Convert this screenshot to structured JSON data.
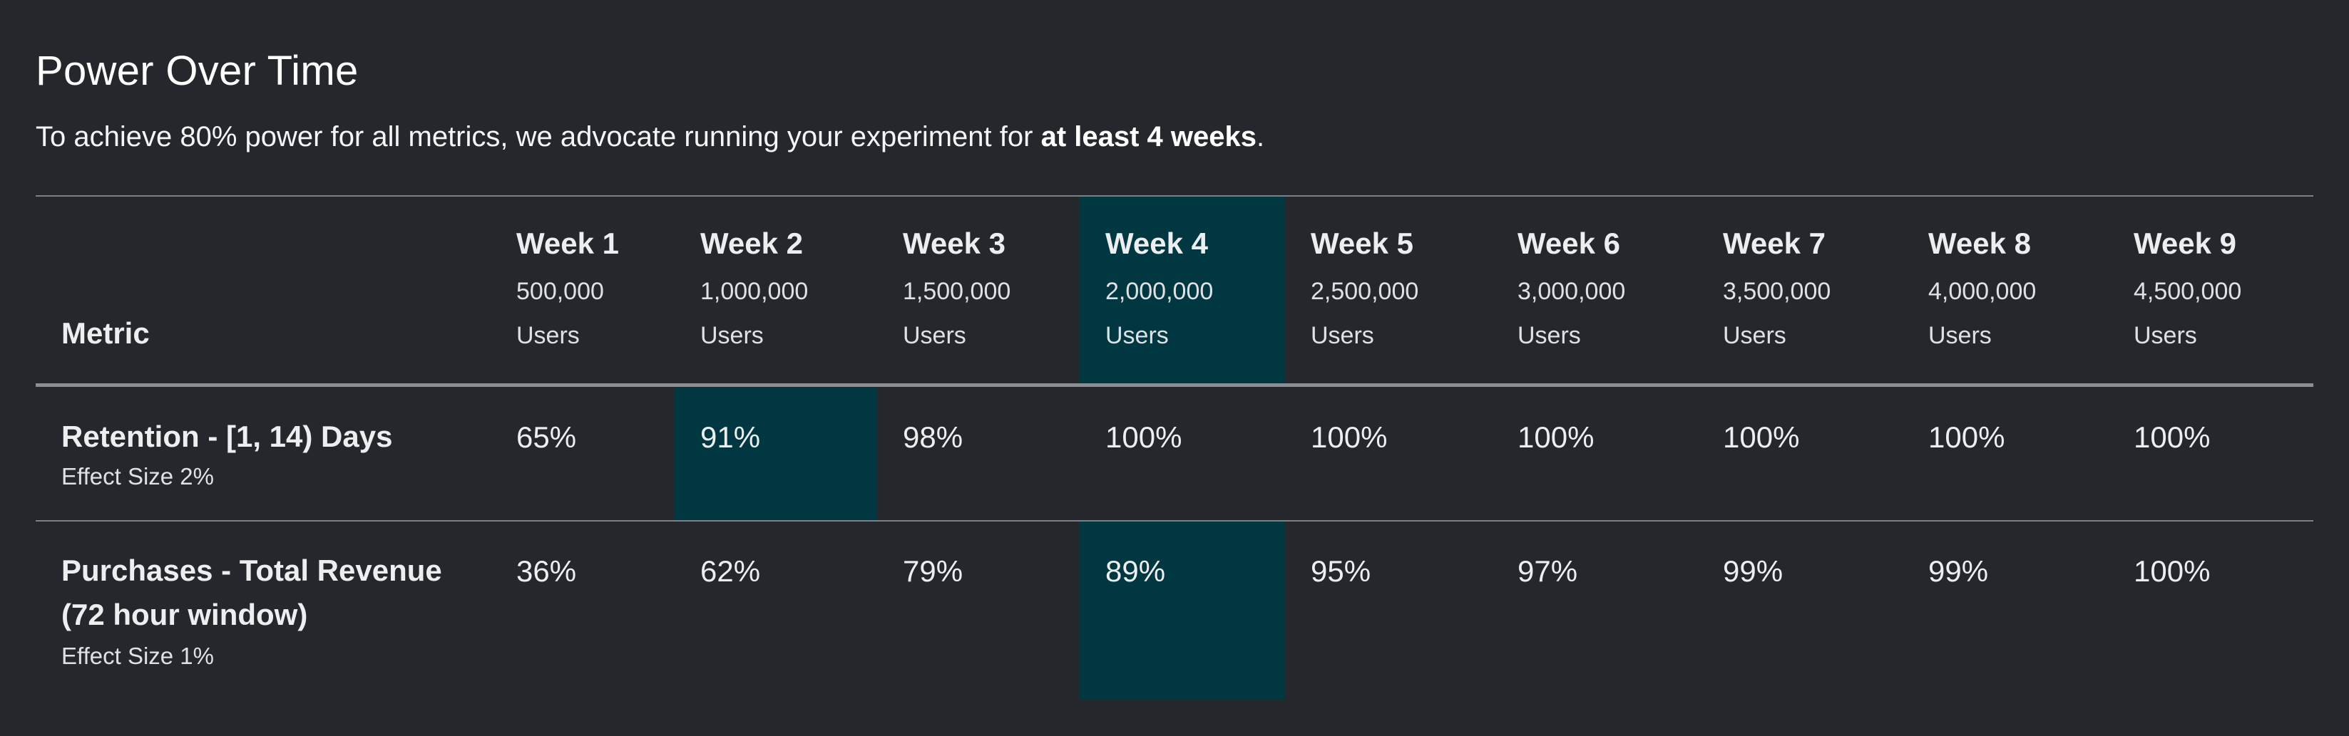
{
  "panel": {
    "title": "Power Over Time",
    "subtitle_prefix": "To achieve 80% power for all metrics, we advocate running your experiment for ",
    "subtitle_bold": "at least 4 weeks",
    "subtitle_suffix": "."
  },
  "table": {
    "metric_header": "Metric",
    "weeks": [
      {
        "label": "Week 1",
        "users": "500,000",
        "unit": "Users"
      },
      {
        "label": "Week 2",
        "users": "1,000,000",
        "unit": "Users"
      },
      {
        "label": "Week 3",
        "users": "1,500,000",
        "unit": "Users"
      },
      {
        "label": "Week 4",
        "users": "2,000,000",
        "unit": "Users"
      },
      {
        "label": "Week 5",
        "users": "2,500,000",
        "unit": "Users"
      },
      {
        "label": "Week 6",
        "users": "3,000,000",
        "unit": "Users"
      },
      {
        "label": "Week 7",
        "users": "3,500,000",
        "unit": "Users"
      },
      {
        "label": "Week 8",
        "users": "4,000,000",
        "unit": "Users"
      },
      {
        "label": "Week 9",
        "users": "4,500,000",
        "unit": "Users"
      }
    ],
    "highlighted_header_week": "Week 4",
    "rows": [
      {
        "name_line1": "Retention - [1, 14) Days",
        "name_line2": "",
        "effect": "Effect Size 2%",
        "values": [
          "65%",
          "91%",
          "98%",
          "100%",
          "100%",
          "100%",
          "100%",
          "100%",
          "100%"
        ],
        "highlighted_week": "Week 2"
      },
      {
        "name_line1": "Purchases - Total Revenue",
        "name_line2": "(72 hour window)",
        "effect": "Effect Size 1%",
        "values": [
          "36%",
          "62%",
          "79%",
          "89%",
          "95%",
          "97%",
          "99%",
          "99%",
          "100%"
        ],
        "highlighted_week": "Week 4"
      }
    ]
  },
  "colors": {
    "background": "#24272b",
    "highlight": "#013740",
    "divider": "#7d8084"
  }
}
